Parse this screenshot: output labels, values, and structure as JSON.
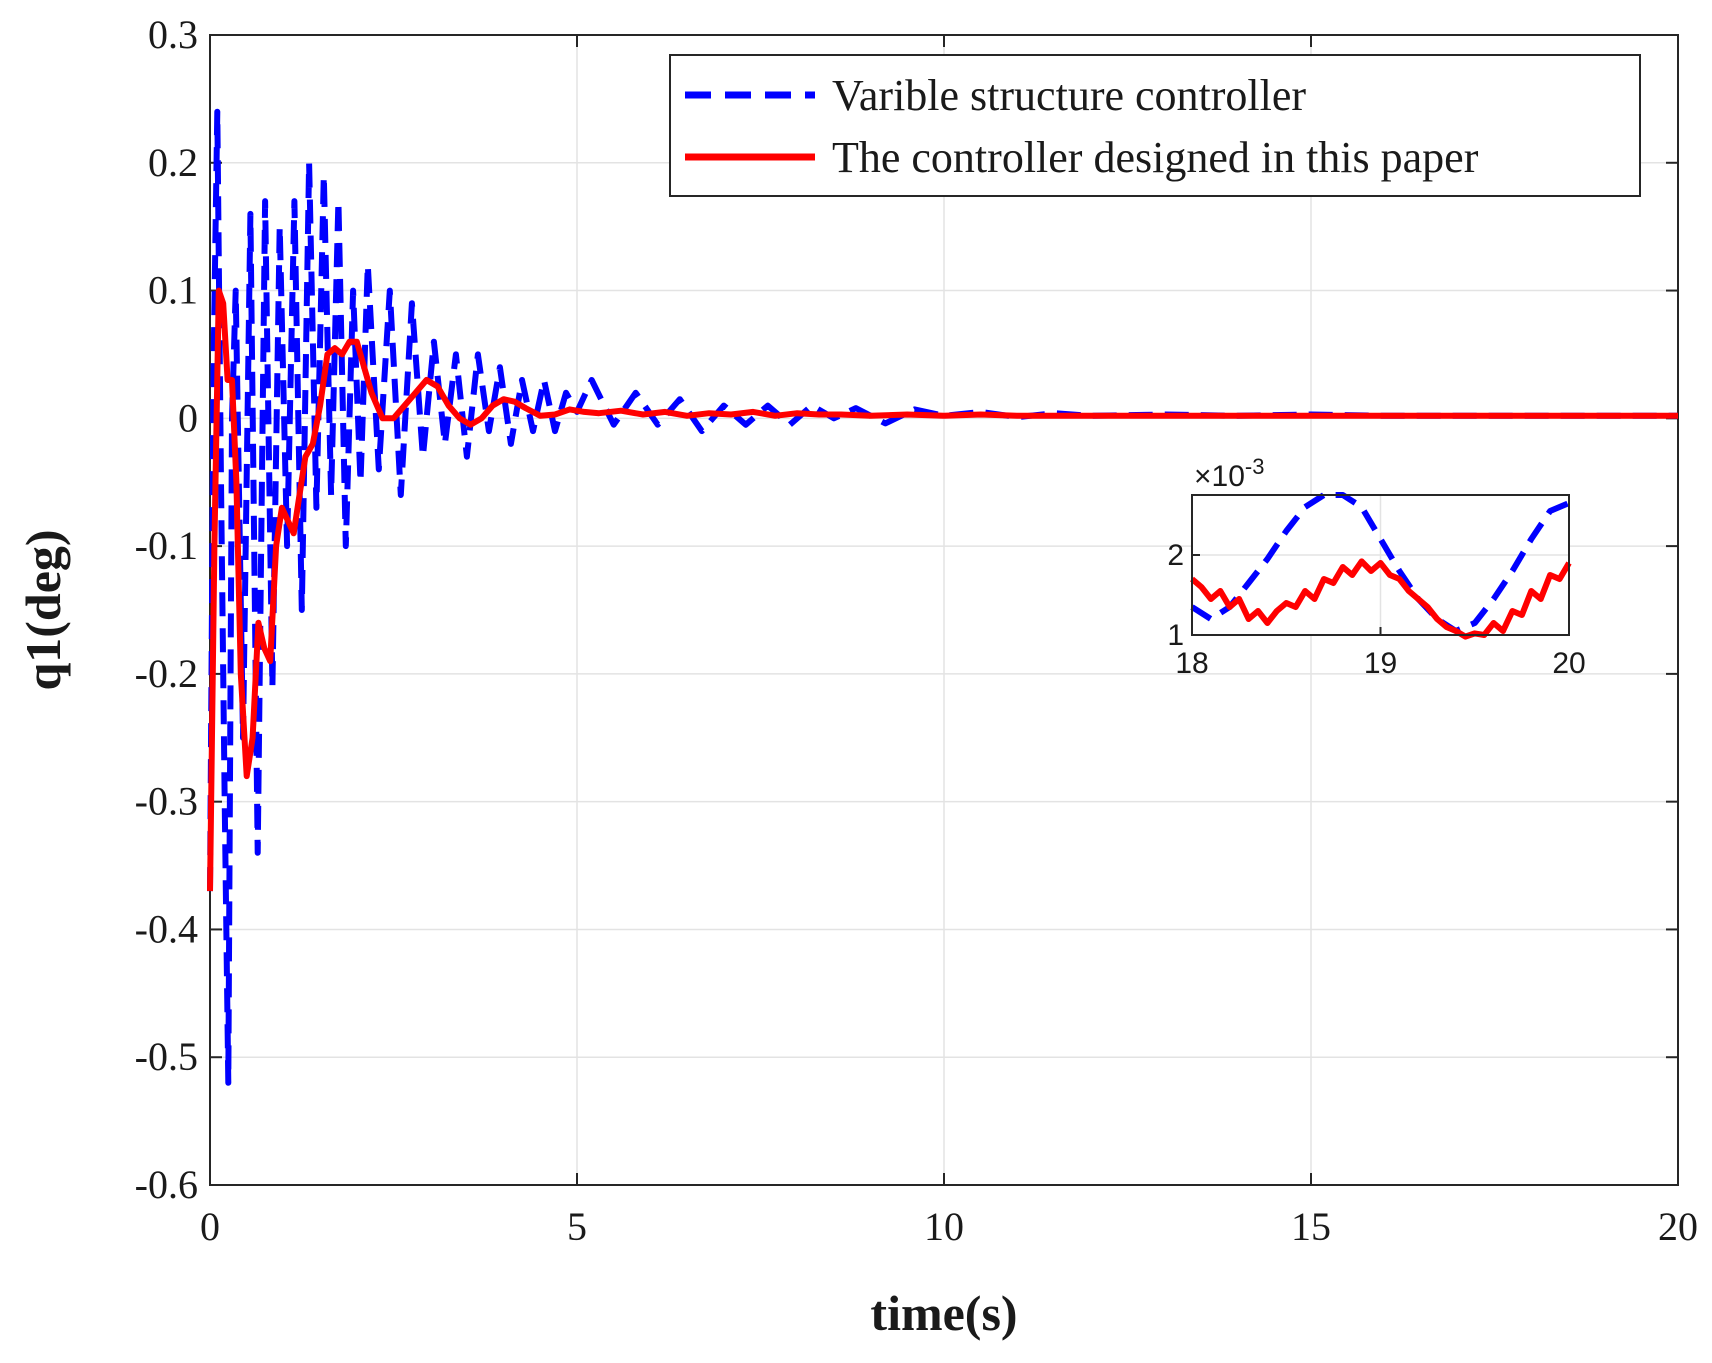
{
  "chart_data": {
    "type": "line",
    "xlabel": "time(s)",
    "ylabel": "q1(deg)",
    "xlim": [
      0,
      20
    ],
    "ylim": [
      -0.6,
      0.3
    ],
    "grid": true,
    "xticks": [
      0,
      5,
      10,
      15,
      20
    ],
    "yticks": [
      -0.6,
      -0.5,
      -0.4,
      -0.3,
      -0.2,
      -0.1,
      0,
      0.1,
      0.2,
      0.3
    ],
    "xtick_labels": [
      "0",
      "5",
      "10",
      "15",
      "20"
    ],
    "ytick_labels": [
      "-0.6",
      "-0.5",
      "-0.4",
      "-0.3",
      "-0.2",
      "-0.1",
      "0",
      "0.1",
      "0.2",
      "0.3"
    ],
    "legend_position": "top-right",
    "series": [
      {
        "name": "Varible structure controller",
        "color": "#0000ff",
        "style": "dashed",
        "x": [
          0,
          0.05,
          0.1,
          0.15,
          0.2,
          0.25,
          0.3,
          0.35,
          0.45,
          0.55,
          0.65,
          0.75,
          0.85,
          0.95,
          1.05,
          1.15,
          1.25,
          1.35,
          1.45,
          1.55,
          1.65,
          1.75,
          1.85,
          1.95,
          2.05,
          2.15,
          2.3,
          2.45,
          2.6,
          2.75,
          2.9,
          3.05,
          3.2,
          3.35,
          3.5,
          3.65,
          3.8,
          3.95,
          4.1,
          4.25,
          4.4,
          4.55,
          4.7,
          4.85,
          5.0,
          5.2,
          5.5,
          5.8,
          6.1,
          6.4,
          6.7,
          7.0,
          7.3,
          7.6,
          7.9,
          8.2,
          8.5,
          8.8,
          9.2,
          9.6,
          10.0,
          10.5,
          11.0,
          11.5,
          12.0,
          13.0,
          14.0,
          15.0,
          16.0,
          17.0,
          18.0,
          19.0,
          20.0
        ],
        "y": [
          -0.37,
          0.05,
          0.24,
          -0.05,
          -0.3,
          -0.52,
          0.0,
          0.1,
          -0.25,
          0.16,
          -0.34,
          0.17,
          -0.21,
          0.15,
          -0.1,
          0.17,
          -0.15,
          0.2,
          -0.07,
          0.19,
          -0.06,
          0.17,
          -0.1,
          0.1,
          -0.05,
          0.12,
          -0.04,
          0.1,
          -0.06,
          0.09,
          -0.03,
          0.06,
          -0.02,
          0.05,
          -0.03,
          0.05,
          -0.01,
          0.04,
          -0.02,
          0.03,
          -0.01,
          0.03,
          -0.01,
          0.02,
          0.005,
          0.03,
          -0.005,
          0.02,
          -0.005,
          0.015,
          -0.01,
          0.01,
          -0.005,
          0.01,
          -0.005,
          0.01,
          0.0,
          0.008,
          -0.004,
          0.007,
          0.002,
          0.005,
          0.001,
          0.004,
          0.002,
          0.003,
          0.002,
          0.003,
          0.002,
          0.002,
          0.002,
          0.002,
          0.002
        ]
      },
      {
        "name": "The controller designed in this paper",
        "color": "#ff0000",
        "style": "solid",
        "x": [
          0,
          0.06,
          0.12,
          0.18,
          0.24,
          0.3,
          0.36,
          0.42,
          0.5,
          0.58,
          0.66,
          0.74,
          0.82,
          0.9,
          0.98,
          1.06,
          1.14,
          1.22,
          1.3,
          1.4,
          1.5,
          1.6,
          1.7,
          1.8,
          1.9,
          2.0,
          2.1,
          2.2,
          2.35,
          2.5,
          2.65,
          2.8,
          2.95,
          3.1,
          3.25,
          3.4,
          3.55,
          3.7,
          3.85,
          4.0,
          4.15,
          4.3,
          4.5,
          4.7,
          4.9,
          5.1,
          5.3,
          5.6,
          5.9,
          6.2,
          6.5,
          6.8,
          7.1,
          7.4,
          7.7,
          8.0,
          8.3,
          8.6,
          9.0,
          9.5,
          10.0,
          10.5,
          11.0,
          12.0,
          13.0,
          14.0,
          15.0,
          16.0,
          17.0,
          18.0,
          19.0,
          20.0
        ],
        "y": [
          -0.37,
          -0.1,
          0.1,
          0.09,
          0.03,
          0.03,
          -0.05,
          -0.2,
          -0.28,
          -0.25,
          -0.16,
          -0.18,
          -0.19,
          -0.1,
          -0.07,
          -0.08,
          -0.09,
          -0.06,
          -0.03,
          -0.02,
          0.01,
          0.05,
          0.055,
          0.05,
          0.06,
          0.06,
          0.04,
          0.02,
          0.0,
          0.0,
          0.01,
          0.02,
          0.03,
          0.025,
          0.01,
          0.0,
          -0.005,
          0.0,
          0.01,
          0.015,
          0.013,
          0.008,
          0.002,
          0.003,
          0.007,
          0.005,
          0.004,
          0.006,
          0.003,
          0.005,
          0.002,
          0.004,
          0.003,
          0.005,
          0.002,
          0.004,
          0.003,
          0.003,
          0.002,
          0.003,
          0.002,
          0.003,
          0.002,
          0.002,
          0.002,
          0.002,
          0.002,
          0.002,
          0.002,
          0.002,
          0.002,
          0.002
        ]
      }
    ],
    "inset": {
      "xlim": [
        18,
        20
      ],
      "ylim": [
        1,
        2.75
      ],
      "exponent_label": "×10",
      "exponent_power": "-3",
      "xticks": [
        18,
        19,
        20
      ],
      "yticks": [
        1,
        2
      ],
      "xtick_labels": [
        "18",
        "19",
        "20"
      ],
      "ytick_labels": [
        "1",
        "2"
      ],
      "series": [
        {
          "name": "Varible structure controller",
          "x": [
            18.0,
            18.1,
            18.2,
            18.3,
            18.4,
            18.5,
            18.6,
            18.7,
            18.8,
            18.9,
            19.0,
            19.1,
            19.2,
            19.3,
            19.4,
            19.5,
            19.6,
            19.7,
            19.8,
            19.9,
            20.0
          ],
          "y": [
            1.35,
            1.2,
            1.35,
            1.65,
            1.95,
            2.3,
            2.6,
            2.75,
            2.75,
            2.6,
            2.2,
            1.8,
            1.45,
            1.2,
            1.05,
            1.15,
            1.45,
            1.8,
            2.2,
            2.55,
            2.65
          ]
        },
        {
          "name": "The controller designed in this paper",
          "x": [
            18.0,
            18.05,
            18.1,
            18.15,
            18.2,
            18.25,
            18.3,
            18.35,
            18.4,
            18.45,
            18.5,
            18.55,
            18.6,
            18.65,
            18.7,
            18.75,
            18.8,
            18.85,
            18.9,
            18.95,
            19.0,
            19.05,
            19.1,
            19.15,
            19.2,
            19.25,
            19.3,
            19.35,
            19.4,
            19.45,
            19.5,
            19.55,
            19.6,
            19.65,
            19.7,
            19.75,
            19.8,
            19.85,
            19.9,
            19.95,
            20.0
          ],
          "y": [
            1.7,
            1.6,
            1.45,
            1.55,
            1.35,
            1.45,
            1.2,
            1.3,
            1.15,
            1.3,
            1.4,
            1.35,
            1.55,
            1.45,
            1.7,
            1.65,
            1.85,
            1.75,
            1.92,
            1.8,
            1.9,
            1.75,
            1.7,
            1.55,
            1.45,
            1.35,
            1.2,
            1.1,
            1.05,
            0.98,
            1.02,
            1.0,
            1.15,
            1.05,
            1.3,
            1.25,
            1.55,
            1.45,
            1.75,
            1.7,
            1.9
          ]
        }
      ]
    }
  }
}
